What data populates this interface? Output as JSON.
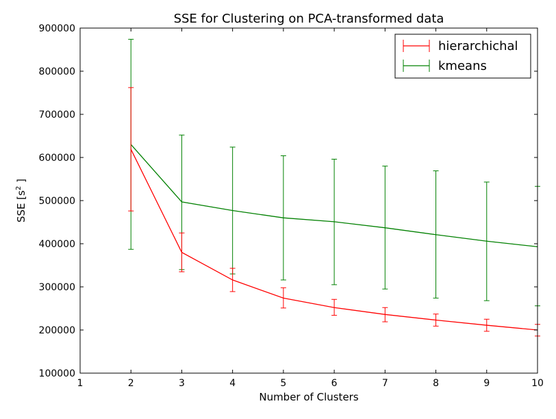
{
  "chart_data": {
    "type": "line",
    "title": "SSE for Clustering on PCA-transformed data",
    "xlabel": "Number of Clusters",
    "ylabel": "SSE [s",
    "ylabel_sup": "2",
    "ylabel_end": " ]",
    "xlim": [
      1,
      10
    ],
    "ylim": [
      100000,
      900000
    ],
    "xticks": [
      1,
      2,
      3,
      4,
      5,
      6,
      7,
      8,
      9,
      10
    ],
    "yticks": [
      100000,
      200000,
      300000,
      400000,
      500000,
      600000,
      700000,
      800000,
      900000
    ],
    "xtick_labels": [
      "1",
      "2",
      "3",
      "4",
      "5",
      "6",
      "7",
      "8",
      "9",
      "10"
    ],
    "ytick_labels": [
      "100000",
      "200000",
      "300000",
      "400000",
      "500000",
      "600000",
      "700000",
      "800000",
      "900000"
    ],
    "legend_position": "top-right",
    "grid": false,
    "series": [
      {
        "name": "hierarchichal",
        "color": "#ff0000",
        "x": [
          2,
          3,
          4,
          5,
          6,
          7,
          8,
          9,
          10
        ],
        "y": [
          619000,
          380000,
          316000,
          274000,
          252000,
          236000,
          223000,
          211000,
          200000
        ],
        "err_low": [
          476000,
          335000,
          289000,
          251000,
          234000,
          219000,
          209000,
          197000,
          186000
        ],
        "err_high": [
          762000,
          425000,
          343000,
          298000,
          271000,
          252000,
          237000,
          225000,
          213000
        ]
      },
      {
        "name": "kmeans",
        "color": "#008000",
        "x": [
          2,
          3,
          4,
          5,
          6,
          7,
          8,
          9,
          10
        ],
        "y": [
          630000,
          497000,
          477000,
          460000,
          451000,
          437000,
          421000,
          406000,
          393000
        ],
        "err_low": [
          387000,
          340000,
          330000,
          316000,
          305000,
          295000,
          274000,
          268000,
          256000
        ],
        "err_high": [
          874000,
          652000,
          624000,
          604000,
          596000,
          580000,
          569000,
          543000,
          533000
        ]
      }
    ]
  }
}
